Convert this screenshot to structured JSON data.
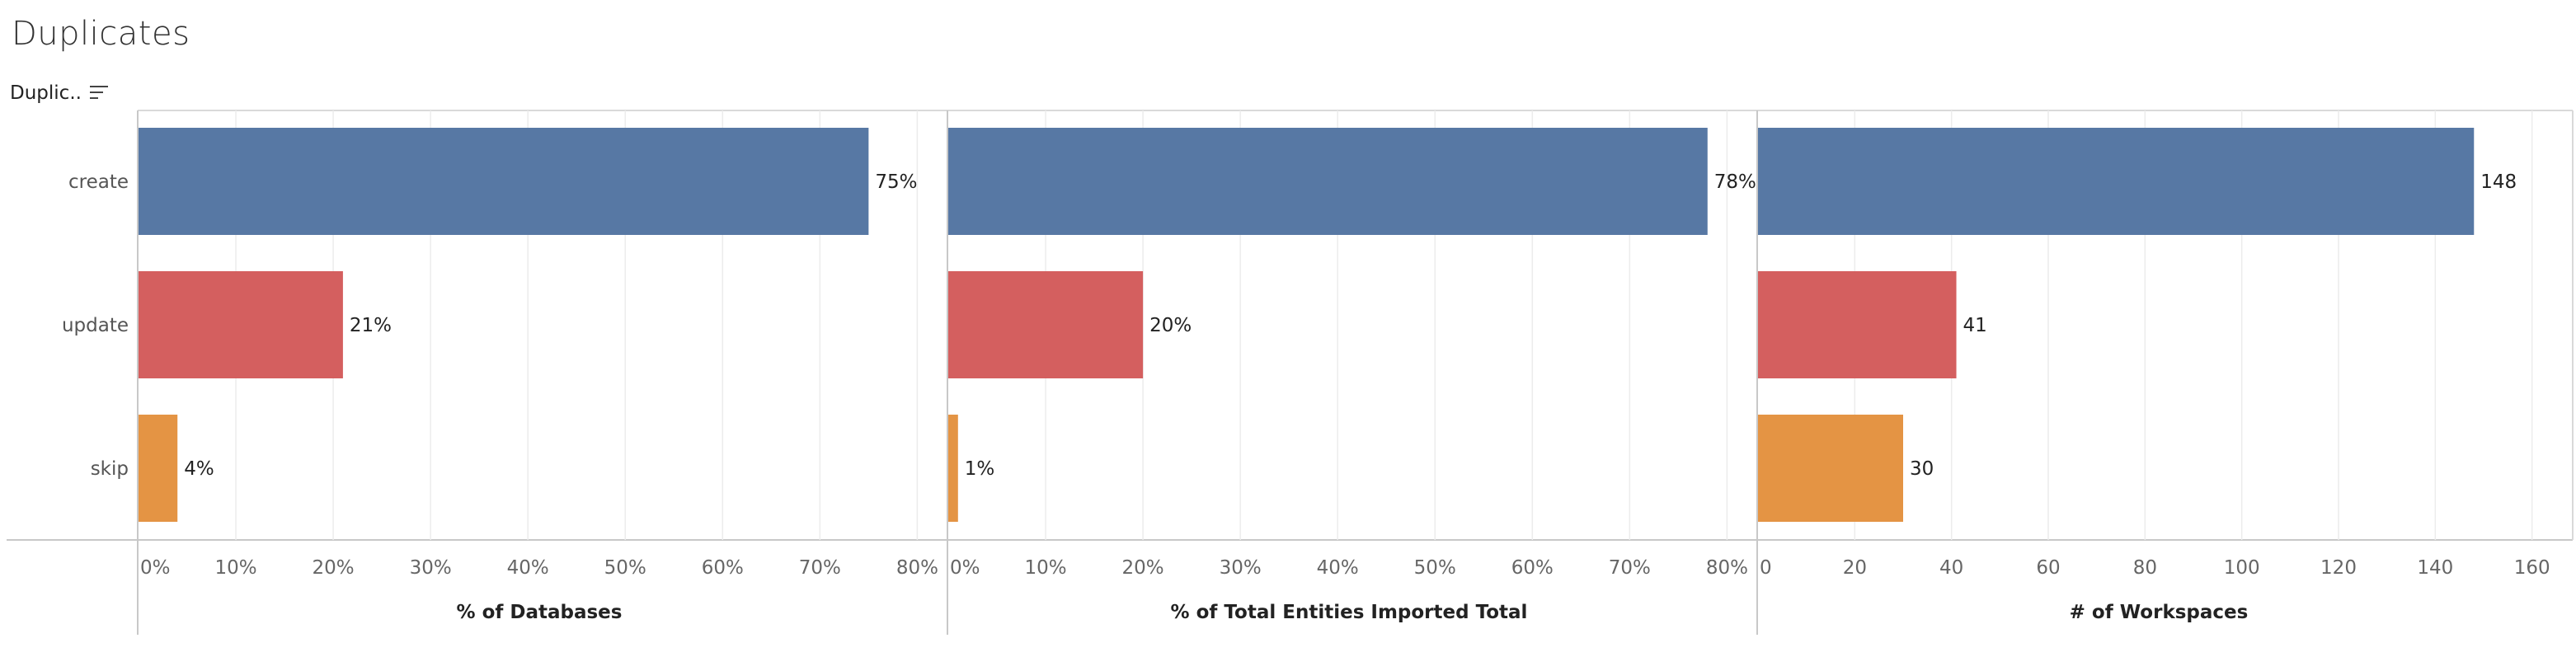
{
  "title": "Duplicates",
  "field_header": {
    "label": "Duplic..",
    "icon": "sort-descending-icon"
  },
  "chart_data": {
    "type": "bar",
    "orientation": "horizontal",
    "categories": [
      "create",
      "update",
      "skip"
    ],
    "colors": [
      "#5778a4",
      "#d45f5f",
      "#e49444"
    ],
    "panels": [
      {
        "name": "% of Databases",
        "xlabel": "% of Databases",
        "values": [
          75,
          21,
          4
        ],
        "value_labels": [
          "75%",
          "21%",
          "4%"
        ],
        "xlim": [
          0,
          82
        ],
        "ticks": [
          0,
          10,
          20,
          30,
          40,
          50,
          60,
          70,
          80
        ],
        "tick_labels": [
          "0%",
          "10%",
          "20%",
          "30%",
          "40%",
          "50%",
          "60%",
          "70%",
          "80%"
        ]
      },
      {
        "name": "% of Total Entities Imported Total",
        "xlabel": "% of Total Entities Imported Total",
        "values": [
          78,
          20,
          1
        ],
        "value_labels": [
          "78%",
          "20%",
          "1%"
        ],
        "xlim": [
          0,
          82
        ],
        "ticks": [
          0,
          10,
          20,
          30,
          40,
          50,
          60,
          70,
          80
        ],
        "tick_labels": [
          "0%",
          "10%",
          "20%",
          "30%",
          "40%",
          "50%",
          "60%",
          "70%",
          "80%"
        ]
      },
      {
        "name": "# of Workspaces",
        "xlabel": "# of Workspaces",
        "values": [
          148,
          41,
          30
        ],
        "value_labels": [
          "148",
          "41",
          "30"
        ],
        "xlim": [
          0,
          165
        ],
        "ticks": [
          0,
          20,
          40,
          60,
          80,
          100,
          120,
          140,
          160
        ],
        "tick_labels": [
          "0",
          "20",
          "40",
          "60",
          "80",
          "100",
          "120",
          "140",
          "160"
        ]
      }
    ],
    "grid": true,
    "legend": "none"
  }
}
